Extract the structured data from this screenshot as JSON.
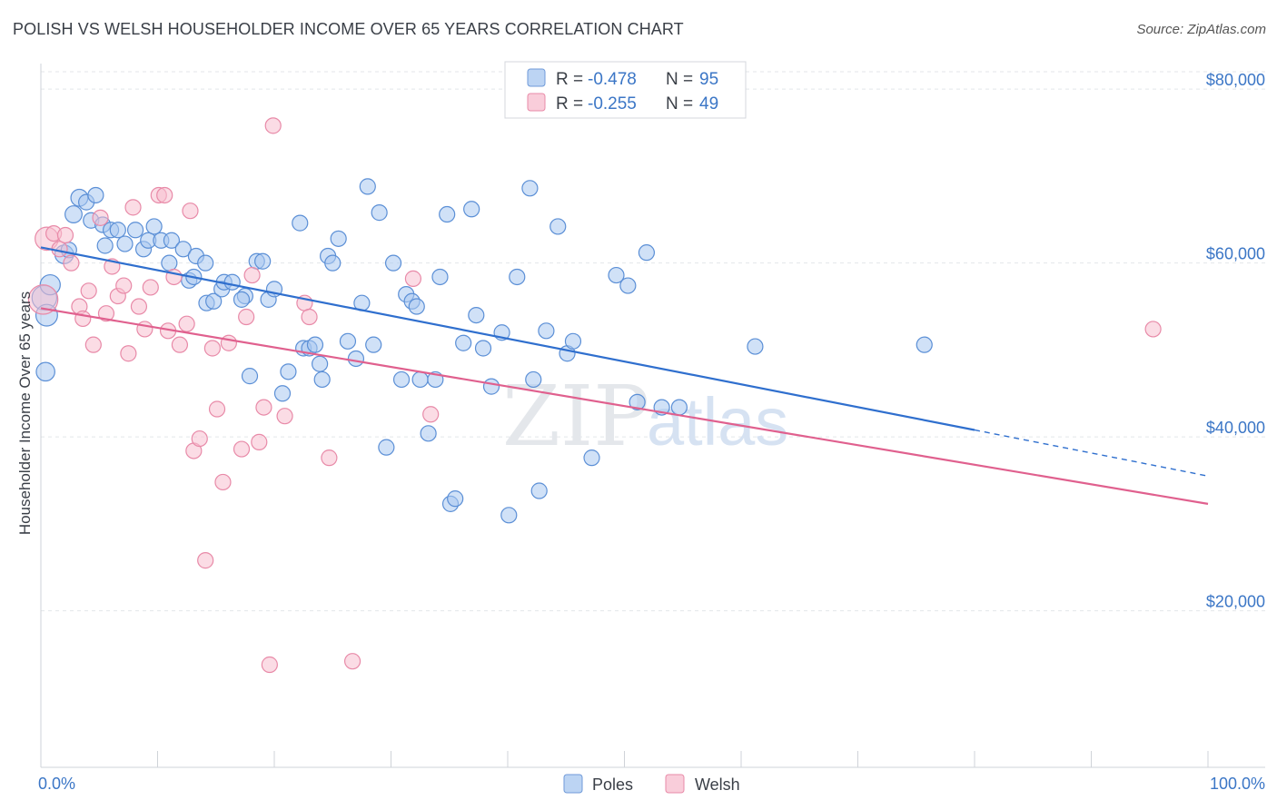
{
  "title": "POLISH VS WELSH HOUSEHOLDER INCOME OVER 65 YEARS CORRELATION CHART",
  "source": "Source: ZipAtlas.com",
  "watermark": {
    "zip": "ZIP",
    "atlas": "atlas"
  },
  "colors": {
    "poles_fill": "#a9c8f0",
    "poles_stroke": "#5b8fd6",
    "poles_line": "#2f6fce",
    "welsh_fill": "#f7bfd0",
    "welsh_stroke": "#e88aa8",
    "welsh_line": "#e0608e",
    "grid": "#e3e6ea",
    "tick_text": "#3b76c6"
  },
  "legend": {
    "poles": {
      "r_label": "R = ",
      "r_value": "-0.478",
      "n_label": "N = ",
      "n_value": "95"
    },
    "welsh": {
      "r_label": "R = ",
      "r_value": "-0.255",
      "n_label": "N = ",
      "n_value": "49"
    }
  },
  "chart_data": {
    "type": "scatter",
    "title": "POLISH VS WELSH HOUSEHOLDER INCOME OVER 65 YEARS CORRELATION CHART",
    "xlabel": "",
    "ylabel": "Householder Income Over 65 years",
    "xlim": [
      0,
      100
    ],
    "ylim": [
      2000,
      82000
    ],
    "x_tick_labels": [
      "0.0%",
      "100.0%"
    ],
    "y_ticks": [
      20000,
      40000,
      60000,
      80000
    ],
    "y_tick_labels": [
      "$20,000",
      "$40,000",
      "$60,000",
      "$80,000"
    ],
    "legend_entries": [
      "Poles",
      "Welsh"
    ],
    "series": [
      {
        "name": "Poles",
        "r": -0.478,
        "n": 95,
        "trend": {
          "x0": 0,
          "y0": 61800,
          "x1": 80,
          "y1": 40800,
          "x_dash_end": 100,
          "y_dash_end": 35500
        },
        "points": [
          [
            0.3,
            56000,
            1.6
          ],
          [
            0.5,
            54000,
            1.4
          ],
          [
            0.8,
            57500,
            1.3
          ],
          [
            0.4,
            47500,
            1.2
          ],
          [
            2,
            61000,
            1.2
          ],
          [
            2.4,
            61500,
            1
          ],
          [
            2.8,
            65600,
            1.1
          ],
          [
            3.3,
            67500,
            1.1
          ],
          [
            3.9,
            67000,
            1
          ],
          [
            4.7,
            67800,
            1
          ],
          [
            4.3,
            64900,
            1
          ],
          [
            5.3,
            64400,
            1
          ],
          [
            5.5,
            62000,
            1
          ],
          [
            6,
            63800,
            1
          ],
          [
            6.6,
            63800,
            1
          ],
          [
            7.2,
            62200,
            1
          ],
          [
            8.1,
            63800,
            1
          ],
          [
            8.8,
            61600,
            1
          ],
          [
            9.2,
            62600,
            1
          ],
          [
            9.7,
            64200,
            1
          ],
          [
            10.3,
            62600,
            1
          ],
          [
            11.2,
            62600,
            1
          ],
          [
            11,
            60000,
            1
          ],
          [
            12.2,
            61600,
            1
          ],
          [
            12.7,
            58000,
            1
          ],
          [
            13.1,
            58400,
            1
          ],
          [
            13.3,
            60800,
            1
          ],
          [
            14.1,
            60000,
            1
          ],
          [
            14.2,
            55400,
            1
          ],
          [
            14.8,
            55600,
            1
          ],
          [
            15.5,
            57000,
            1
          ],
          [
            15.7,
            57800,
            1
          ],
          [
            16.4,
            57800,
            1
          ],
          [
            17.5,
            56200,
            1
          ],
          [
            17.2,
            55800,
            1
          ],
          [
            17.9,
            47000,
            1
          ],
          [
            18.5,
            60200,
            1
          ],
          [
            19,
            60200,
            1
          ],
          [
            19.5,
            55800,
            1
          ],
          [
            20,
            57000,
            1
          ],
          [
            20.7,
            45000,
            1
          ],
          [
            21.2,
            47500,
            1
          ],
          [
            22.2,
            64600,
            1
          ],
          [
            22.5,
            50200,
            1
          ],
          [
            23,
            50200,
            1
          ],
          [
            23.5,
            50600,
            1
          ],
          [
            23.9,
            48400,
            1
          ],
          [
            24.1,
            46600,
            1
          ],
          [
            24.6,
            60800,
            1
          ],
          [
            25,
            60000,
            1
          ],
          [
            25.5,
            62800,
            1
          ],
          [
            26.3,
            51000,
            1
          ],
          [
            27,
            49000,
            1
          ],
          [
            27.5,
            55400,
            1
          ],
          [
            28,
            68800,
            1
          ],
          [
            28.5,
            50600,
            1
          ],
          [
            29,
            65800,
            1
          ],
          [
            29.6,
            38800,
            1
          ],
          [
            30.2,
            60000,
            1
          ],
          [
            30.9,
            46600,
            1
          ],
          [
            31.3,
            56400,
            1
          ],
          [
            31.8,
            55600,
            1
          ],
          [
            32.2,
            55000,
            1
          ],
          [
            32.5,
            46600,
            1
          ],
          [
            33.2,
            40400,
            1
          ],
          [
            33.8,
            46600,
            1
          ],
          [
            34.2,
            58400,
            1
          ],
          [
            34.8,
            65600,
            1
          ],
          [
            35.1,
            32300,
            1
          ],
          [
            35.5,
            32900,
            1
          ],
          [
            36.2,
            50800,
            1
          ],
          [
            36.9,
            66200,
            1
          ],
          [
            37.3,
            54000,
            1
          ],
          [
            37.9,
            50200,
            1
          ],
          [
            38.6,
            45800,
            1
          ],
          [
            39.5,
            52000,
            1
          ],
          [
            40.1,
            31000,
            1
          ],
          [
            40.8,
            58400,
            1
          ],
          [
            41.9,
            68600,
            1
          ],
          [
            42.2,
            46600,
            1
          ],
          [
            42.7,
            33800,
            1
          ],
          [
            43.3,
            52200,
            1
          ],
          [
            44.3,
            64200,
            1
          ],
          [
            45.1,
            49600,
            1
          ],
          [
            45.6,
            51000,
            1
          ],
          [
            47.2,
            37600,
            1
          ],
          [
            49.3,
            58600,
            1
          ],
          [
            50.3,
            57400,
            1
          ],
          [
            51.1,
            44000,
            1
          ],
          [
            51.9,
            61200,
            1
          ],
          [
            53.2,
            43400,
            1
          ],
          [
            54.7,
            43400,
            1
          ],
          [
            61.2,
            50400,
            1
          ],
          [
            75.7,
            50600,
            1
          ]
        ]
      },
      {
        "name": "Welsh",
        "r": -0.255,
        "n": 49,
        "trend": {
          "x0": 0,
          "y0": 54800,
          "x1": 100,
          "y1": 32300
        },
        "points": [
          [
            0.2,
            55800,
            1.9
          ],
          [
            0.5,
            62800,
            1.5
          ],
          [
            1.1,
            63400,
            1
          ],
          [
            1.6,
            61600,
            1
          ],
          [
            2.1,
            63200,
            1
          ],
          [
            2.6,
            60000,
            1
          ],
          [
            3.3,
            55000,
            1
          ],
          [
            3.6,
            53600,
            1
          ],
          [
            4.1,
            56800,
            1
          ],
          [
            4.5,
            50600,
            1
          ],
          [
            5.1,
            65200,
            1
          ],
          [
            5.6,
            54200,
            1
          ],
          [
            6.1,
            59600,
            1
          ],
          [
            6.6,
            56200,
            1
          ],
          [
            7.1,
            57400,
            1
          ],
          [
            7.5,
            49600,
            1
          ],
          [
            7.9,
            66400,
            1
          ],
          [
            8.4,
            55000,
            1
          ],
          [
            8.9,
            52400,
            1
          ],
          [
            9.4,
            57200,
            1
          ],
          [
            10.1,
            67800,
            1
          ],
          [
            10.6,
            67800,
            1
          ],
          [
            10.9,
            52200,
            1
          ],
          [
            11.4,
            58400,
            1
          ],
          [
            11.9,
            50600,
            1
          ],
          [
            12.5,
            53000,
            1
          ],
          [
            12.8,
            66000,
            1
          ],
          [
            13.1,
            38400,
            1
          ],
          [
            13.6,
            39800,
            1
          ],
          [
            14.1,
            25800,
            1
          ],
          [
            14.7,
            50200,
            1
          ],
          [
            15.1,
            43200,
            1
          ],
          [
            15.6,
            34800,
            1
          ],
          [
            16.1,
            50800,
            1
          ],
          [
            17.2,
            38600,
            1
          ],
          [
            17.6,
            53800,
            1
          ],
          [
            18.1,
            58600,
            1
          ],
          [
            18.7,
            39400,
            1
          ],
          [
            19.1,
            43400,
            1
          ],
          [
            19.6,
            13800,
            1
          ],
          [
            19.9,
            75800,
            1
          ],
          [
            20.9,
            42400,
            1
          ],
          [
            22.6,
            55400,
            1
          ],
          [
            23,
            53800,
            1
          ],
          [
            24.7,
            37600,
            1
          ],
          [
            26.7,
            14200,
            1
          ],
          [
            31.9,
            58200,
            1
          ],
          [
            33.4,
            42600,
            1
          ],
          [
            95.3,
            52400,
            1
          ]
        ]
      }
    ]
  }
}
